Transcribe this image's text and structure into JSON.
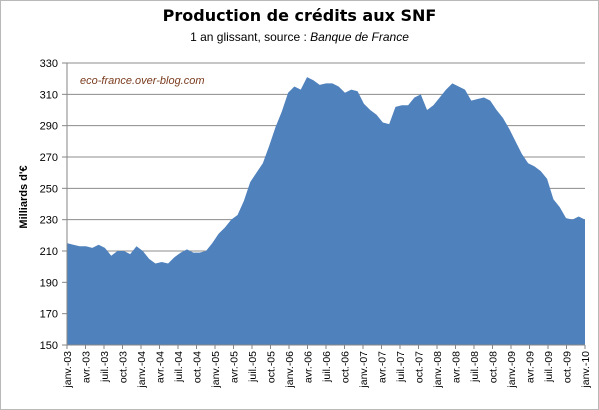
{
  "chart_data": {
    "type": "area",
    "title": "Production de crédits aux SNF",
    "subtitle_prefix": "1 an glissant, source : ",
    "subtitle_source": "Banque de France",
    "ylabel": "Milliards d'€",
    "xlabel": "",
    "watermark": "eco-france.over-blog.com",
    "ylim": [
      150,
      330
    ],
    "yticks": [
      150,
      170,
      190,
      210,
      230,
      250,
      270,
      290,
      310,
      330
    ],
    "grid": true,
    "legend": "none",
    "fill_color": "#4f81bd",
    "x_labels": [
      "janv.-03",
      "avr.-03",
      "juil.-03",
      "oct.-03",
      "janv.-04",
      "avr.-04",
      "juil.-04",
      "oct.-04",
      "janv.-05",
      "avr.-05",
      "juil.-05",
      "oct.-05",
      "janv.-06",
      "avr.-06",
      "juil.-06",
      "oct.-06",
      "janv.-07",
      "avr.-07",
      "juil.-07",
      "oct.-07",
      "janv.-08",
      "avr.-08",
      "juil.-08",
      "oct.-08",
      "janv.-09",
      "avr.-09",
      "juil.-09",
      "oct.-09",
      "janv.-10"
    ],
    "values": [
      215,
      214,
      213,
      213,
      212,
      214,
      212,
      207,
      210,
      210,
      208,
      213,
      210,
      205,
      202,
      203,
      202,
      206,
      209,
      211,
      209,
      209,
      210,
      215,
      221,
      225,
      230,
      233,
      242,
      254,
      260,
      266,
      277,
      289,
      299,
      311,
      315,
      313,
      321,
      319,
      316,
      317,
      317,
      315,
      311,
      313,
      312,
      304,
      300,
      297,
      292,
      291,
      302,
      303,
      303,
      308,
      310,
      300,
      303,
      308,
      313,
      317,
      315,
      313,
      306,
      307,
      308,
      306,
      300,
      295,
      288,
      280,
      272,
      266,
      264,
      261,
      256,
      243,
      238,
      231,
      230,
      232,
      230
    ]
  }
}
